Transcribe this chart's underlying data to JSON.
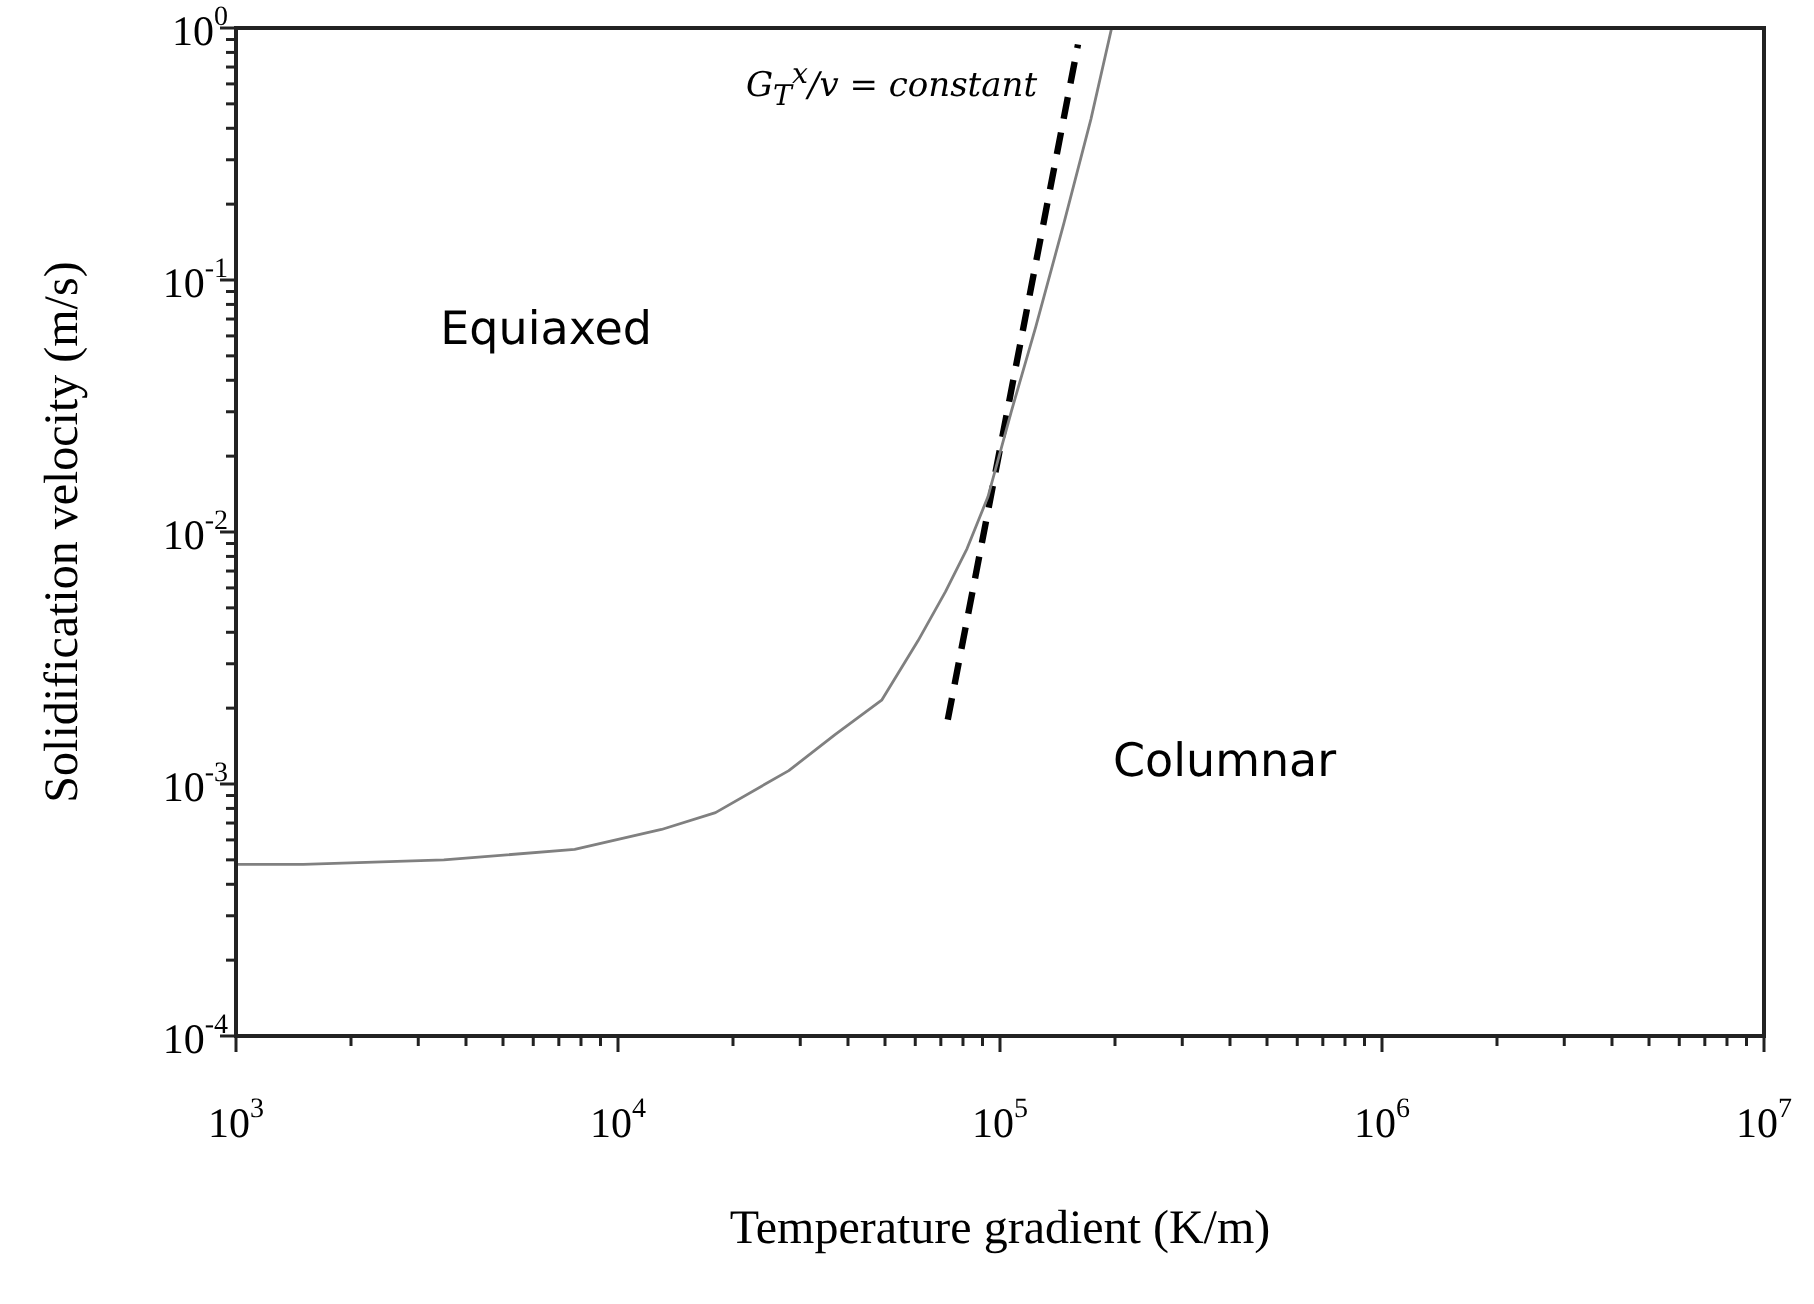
{
  "chart_data": {
    "type": "line",
    "xlabel": "Temperature gradient (K/m)",
    "ylabel": "Solidification velocity (m/s)",
    "log": "xy",
    "grid": false,
    "legend": false,
    "marker": "none",
    "xlim": [
      1000,
      10000000
    ],
    "ylim": [
      0.0001,
      1
    ],
    "xticks": [
      {
        "value": 1000,
        "label": "10$^{3}$"
      },
      {
        "value": 2000,
        "label": null
      },
      {
        "value": 3000,
        "label": null
      },
      {
        "value": 4000,
        "label": null
      },
      {
        "value": 5000,
        "label": null
      },
      {
        "value": 6000,
        "label": null
      },
      {
        "value": 7000,
        "label": null
      },
      {
        "value": 8000,
        "label": null
      },
      {
        "value": 9000,
        "label": null
      },
      {
        "value": 10000,
        "label": "10$^{4}$"
      },
      {
        "value": 20000,
        "label": null
      },
      {
        "value": 30000,
        "label": null
      },
      {
        "value": 40000,
        "label": null
      },
      {
        "value": 50000,
        "label": null
      },
      {
        "value": 60000,
        "label": null
      },
      {
        "value": 70000,
        "label": null
      },
      {
        "value": 80000,
        "label": null
      },
      {
        "value": 90000,
        "label": null
      },
      {
        "value": 100000,
        "label": "10$^{5}$"
      },
      {
        "value": 200000,
        "label": null
      },
      {
        "value": 300000,
        "label": null
      },
      {
        "value": 400000,
        "label": null
      },
      {
        "value": 500000,
        "label": null
      },
      {
        "value": 600000,
        "label": null
      },
      {
        "value": 700000,
        "label": null
      },
      {
        "value": 800000,
        "label": null
      },
      {
        "value": 900000,
        "label": null
      },
      {
        "value": 1000000,
        "label": "10$^{6}$"
      },
      {
        "value": 2000000,
        "label": null
      },
      {
        "value": 3000000,
        "label": null
      },
      {
        "value": 4000000,
        "label": null
      },
      {
        "value": 5000000,
        "label": null
      },
      {
        "value": 6000000,
        "label": null
      },
      {
        "value": 7000000,
        "label": null
      },
      {
        "value": 8000000,
        "label": null
      },
      {
        "value": 9000000,
        "label": null
      },
      {
        "value": 10000000,
        "label": "10$^{7}$"
      }
    ],
    "yticks": [
      {
        "value": 0.0001,
        "label": "10$^{-4}$"
      },
      {
        "value": 0.0002,
        "label": null
      },
      {
        "value": 0.0003,
        "label": null
      },
      {
        "value": 0.0004,
        "label": null
      },
      {
        "value": 0.0005,
        "label": null
      },
      {
        "value": 0.0006,
        "label": null
      },
      {
        "value": 0.0007,
        "label": null
      },
      {
        "value": 0.0008,
        "label": null
      },
      {
        "value": 0.0009,
        "label": null
      },
      {
        "value": 0.001,
        "label": "10$^{-3}$"
      },
      {
        "value": 0.002,
        "label": null
      },
      {
        "value": 0.003,
        "label": null
      },
      {
        "value": 0.004,
        "label": null
      },
      {
        "value": 0.005,
        "label": null
      },
      {
        "value": 0.006,
        "label": null
      },
      {
        "value": 0.007,
        "label": null
      },
      {
        "value": 0.008,
        "label": null
      },
      {
        "value": 0.009,
        "label": null
      },
      {
        "value": 0.01,
        "label": "10$^{-2}$"
      },
      {
        "value": 0.02,
        "label": null
      },
      {
        "value": 0.03,
        "label": null
      },
      {
        "value": 0.04,
        "label": null
      },
      {
        "value": 0.05,
        "label": null
      },
      {
        "value": 0.06,
        "label": null
      },
      {
        "value": 0.07,
        "label": null
      },
      {
        "value": 0.08,
        "label": null
      },
      {
        "value": 0.09,
        "label": null
      },
      {
        "value": 0.1,
        "label": "10$^{-1}$"
      },
      {
        "value": 0.2,
        "label": null
      },
      {
        "value": 0.3,
        "label": null
      },
      {
        "value": 0.4,
        "label": null
      },
      {
        "value": 0.5,
        "label": null
      },
      {
        "value": 0.6,
        "label": null
      },
      {
        "value": 0.7,
        "label": null
      },
      {
        "value": 0.8,
        "label": null
      },
      {
        "value": 0.9,
        "label": null
      },
      {
        "value": 1,
        "label": "10$^{0}$"
      }
    ],
    "annotations": [
      "Equiaxed",
      "Columnar",
      "G$_{T}$$^{x}$/v = constant"
    ],
    "series": [
      {
        "color": "#808080",
        "line_style": "solid",
        "x": [
          1000,
          1500,
          3500,
          7700,
          13000,
          18000,
          28000,
          37000,
          49000,
          61000,
          72000,
          82000,
          93000,
          107000,
          124000,
          147000,
          173000,
          196000
        ],
        "values": [
          0.00048,
          0.00048,
          0.0005,
          0.00055,
          0.00066,
          0.00077,
          0.00113,
          0.00157,
          0.00215,
          0.0037,
          0.0058,
          0.0086,
          0.0138,
          0.03,
          0.065,
          0.168,
          0.435,
          1
        ]
      },
      {
        "color": "#000000",
        "line_style": "dashed",
        "x": [
          73000,
          160000
        ],
        "values": [
          0.0018,
          0.86
        ]
      }
    ]
  }
}
